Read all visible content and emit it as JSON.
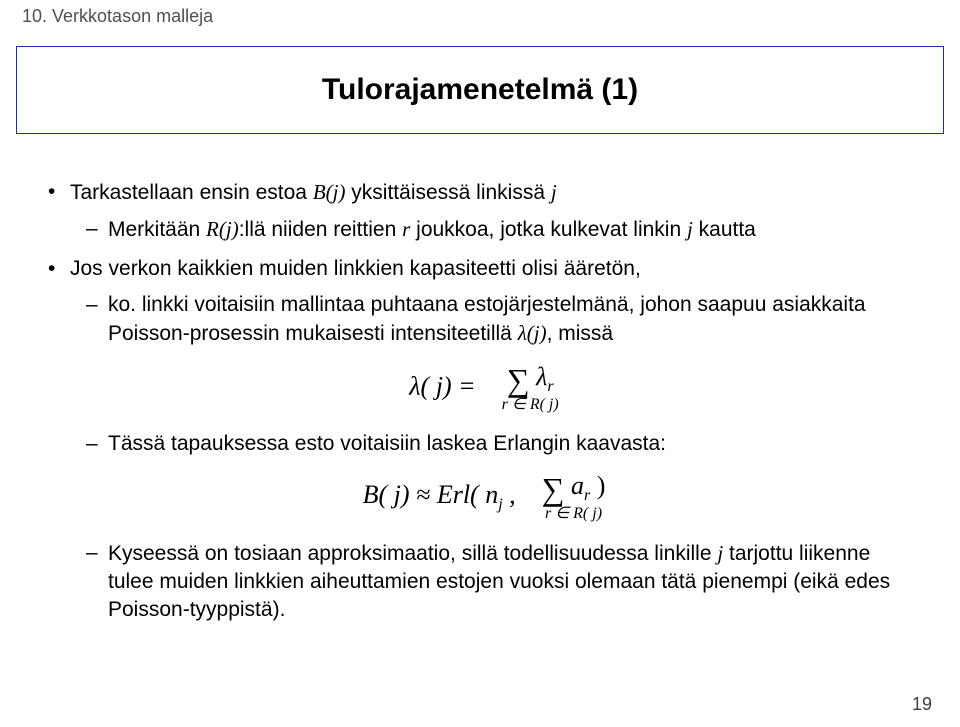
{
  "header": "10. Verkkotason malleja",
  "title": "Tulorajamenetelmä (1)",
  "b1_pre": "Tarkastellaan ensin estoa ",
  "b1_bj": "B(j)",
  "b1_mid": " yksittäisessä linkissä ",
  "b1_j": "j",
  "b2_pre": "Merkitään ",
  "b2_rj": "R(j)",
  "b2_mid1": ":llä niiden reittien ",
  "b2_r": "r",
  "b2_mid2": " joukkoa, jotka kulkevat linkin ",
  "b2_j": "j",
  "b2_end": " kautta",
  "b3": "Jos verkon kaikkien muiden linkkien kapasiteetti olisi ääretön,",
  "b4_pre": "ko. linkki voitaisiin mallintaa puhtaana estojärjestelmänä, johon saapuu asiakkaita Poisson-prosessin mukaisesti intensiteetillä ",
  "b4_lj": "λ(j)",
  "b4_end": ", missä",
  "f1_left": "λ( j) =",
  "f1_sum": "∑",
  "f1_lr": "λ",
  "f1_lr_sub": "r",
  "f1_range": "r ∈ R( j)",
  "b5": "Tässä tapauksessa esto voitaisiin laskea Erlangin kaavasta:",
  "f2_left": "B( j) ≈ Erl( n",
  "f2_nsub": "j",
  "f2_comma": " ,",
  "f2_sum": "∑",
  "f2_ar": "a",
  "f2_ar_sub": "r",
  "f2_close": " )",
  "f2_range": "r ∈ R( j)",
  "b6_pre": "Kyseessä on tosiaan approksimaatio, sillä todellisuudessa linkille ",
  "b6_j": "j",
  "b6_end": " tarjottu liikenne  tulee muiden linkkien aiheuttamien estojen vuoksi olemaan tätä pienempi (eikä edes Poisson-tyyppistä).",
  "page": "19"
}
